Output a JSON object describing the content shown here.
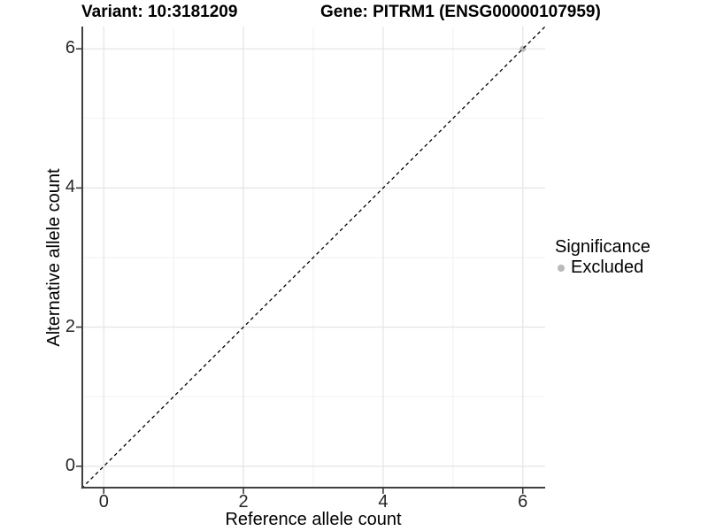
{
  "figure": {
    "title_left": "Variant: 10:3181209",
    "title_right": "Gene: PITRM1 (ENSG00000107959)"
  },
  "axes": {
    "x_title": "Reference allele count",
    "y_title": "Alternative allele count"
  },
  "legend": {
    "title": "Significance",
    "entries": [
      {
        "label": "Excluded",
        "color": "#b9b9b9"
      }
    ]
  },
  "chart_data": {
    "type": "scatter",
    "title": "Variant: 10:3181209    Gene: PITRM1 (ENSG00000107959)",
    "xlabel": "Reference allele count",
    "ylabel": "Alternative allele count",
    "xlim": [
      -0.32,
      6.32
    ],
    "ylim": [
      -0.32,
      6.32
    ],
    "x_major_ticks": [
      0,
      2,
      4,
      6
    ],
    "y_major_ticks": [
      0,
      2,
      4,
      6
    ],
    "x_minor_ticks": [
      1,
      3,
      5
    ],
    "y_minor_ticks": [
      1,
      3,
      5
    ],
    "series": [
      {
        "name": "Excluded",
        "color": "#b9b9b9",
        "point_radius": 3.4,
        "points": [
          {
            "x": 6,
            "y": 6
          }
        ]
      }
    ],
    "reference_line": {
      "kind": "identity",
      "equation": "y = x",
      "style": "dashed",
      "color": "#000000"
    },
    "grid": {
      "major_color": "#e4e4e4",
      "minor_color": "#f2f2f2"
    },
    "legend_position": "right",
    "legend_title": "Significance"
  },
  "colors": {
    "axis_line": "#404040",
    "tick_mark": "#333333",
    "background": "#ffffff"
  }
}
